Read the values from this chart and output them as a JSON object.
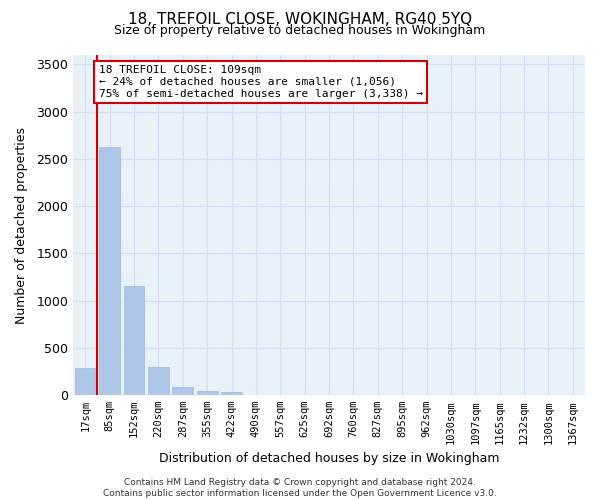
{
  "title": "18, TREFOIL CLOSE, WOKINGHAM, RG40 5YQ",
  "subtitle": "Size of property relative to detached houses in Wokingham",
  "xlabel": "Distribution of detached houses by size in Wokingham",
  "ylabel": "Number of detached properties",
  "bar_values": [
    290,
    2630,
    1155,
    295,
    90,
    45,
    30,
    0,
    0,
    0,
    0,
    0,
    0,
    0,
    0,
    0,
    0,
    0,
    0,
    0,
    0
  ],
  "bar_labels": [
    "17sqm",
    "85sqm",
    "152sqm",
    "220sqm",
    "287sqm",
    "355sqm",
    "422sqm",
    "490sqm",
    "557sqm",
    "625sqm",
    "692sqm",
    "760sqm",
    "827sqm",
    "895sqm",
    "962sqm",
    "1030sqm",
    "1097sqm",
    "1165sqm",
    "1232sqm",
    "1300sqm",
    "1367sqm"
  ],
  "bar_color": "#aec6e8",
  "bar_edge_color": "#9ab8d8",
  "grid_color": "#d0dff0",
  "background_color": "#e8f0f8",
  "vline_color": "#cc0000",
  "vline_x": 0.5,
  "annotation_text": "18 TREFOIL CLOSE: 109sqm\n← 24% of detached houses are smaller (1,056)\n75% of semi-detached houses are larger (3,338) →",
  "annotation_box_color": "#ffffff",
  "annotation_box_edge": "#cc0000",
  "ylim": [
    0,
    3600
  ],
  "yticks": [
    0,
    500,
    1000,
    1500,
    2000,
    2500,
    3000,
    3500
  ],
  "footer_line1": "Contains HM Land Registry data © Crown copyright and database right 2024.",
  "footer_line2": "Contains public sector information licensed under the Open Government Licence v3.0."
}
